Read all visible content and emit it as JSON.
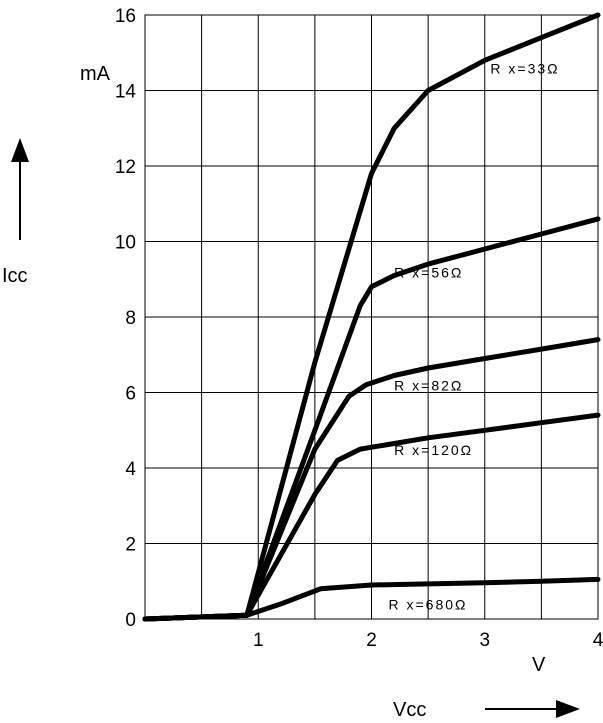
{
  "chart_data": {
    "type": "line",
    "xlim": [
      0,
      4
    ],
    "ylim": [
      0,
      16
    ],
    "x_ticks": [
      "1",
      "2",
      "3",
      "4"
    ],
    "y_ticks": [
      "0",
      "2",
      "4",
      "6",
      "8",
      "10",
      "12",
      "14",
      "16"
    ],
    "x_unit": "V",
    "y_unit": "mA",
    "xlabel": "Vcc",
    "ylabel": "Icc",
    "grid": true,
    "series": [
      {
        "name": "R x=33Ω",
        "points": [
          [
            0,
            0
          ],
          [
            0.9,
            0.1
          ],
          [
            1.5,
            6.8
          ],
          [
            2.0,
            11.8
          ],
          [
            2.2,
            13.0
          ],
          [
            2.5,
            14.0
          ],
          [
            3.0,
            14.8
          ],
          [
            3.5,
            15.4
          ],
          [
            4.0,
            16.0
          ]
        ]
      },
      {
        "name": "R x=56Ω",
        "points": [
          [
            0,
            0
          ],
          [
            0.9,
            0.1
          ],
          [
            1.5,
            5.0
          ],
          [
            1.9,
            8.3
          ],
          [
            2.0,
            8.8
          ],
          [
            2.2,
            9.1
          ],
          [
            2.5,
            9.4
          ],
          [
            3.0,
            9.8
          ],
          [
            3.5,
            10.2
          ],
          [
            4.0,
            10.6
          ]
        ]
      },
      {
        "name": "R x=82Ω",
        "points": [
          [
            0,
            0
          ],
          [
            0.9,
            0.1
          ],
          [
            1.5,
            4.5
          ],
          [
            1.8,
            5.9
          ],
          [
            1.95,
            6.2
          ],
          [
            2.2,
            6.45
          ],
          [
            2.5,
            6.65
          ],
          [
            3.0,
            6.9
          ],
          [
            3.5,
            7.15
          ],
          [
            4.0,
            7.4
          ]
        ]
      },
      {
        "name": "R x=120Ω",
        "points": [
          [
            0,
            0
          ],
          [
            0.9,
            0.1
          ],
          [
            1.5,
            3.3
          ],
          [
            1.7,
            4.2
          ],
          [
            1.9,
            4.5
          ],
          [
            2.2,
            4.65
          ],
          [
            2.5,
            4.8
          ],
          [
            3.0,
            5.0
          ],
          [
            3.5,
            5.2
          ],
          [
            4.0,
            5.4
          ]
        ]
      },
      {
        "name": "R x=680Ω",
        "points": [
          [
            0,
            0
          ],
          [
            0.9,
            0.1
          ],
          [
            1.2,
            0.4
          ],
          [
            1.55,
            0.8
          ],
          [
            2.0,
            0.9
          ],
          [
            2.5,
            0.93
          ],
          [
            3.0,
            0.96
          ],
          [
            3.5,
            1.0
          ],
          [
            4.0,
            1.05
          ]
        ]
      }
    ]
  }
}
